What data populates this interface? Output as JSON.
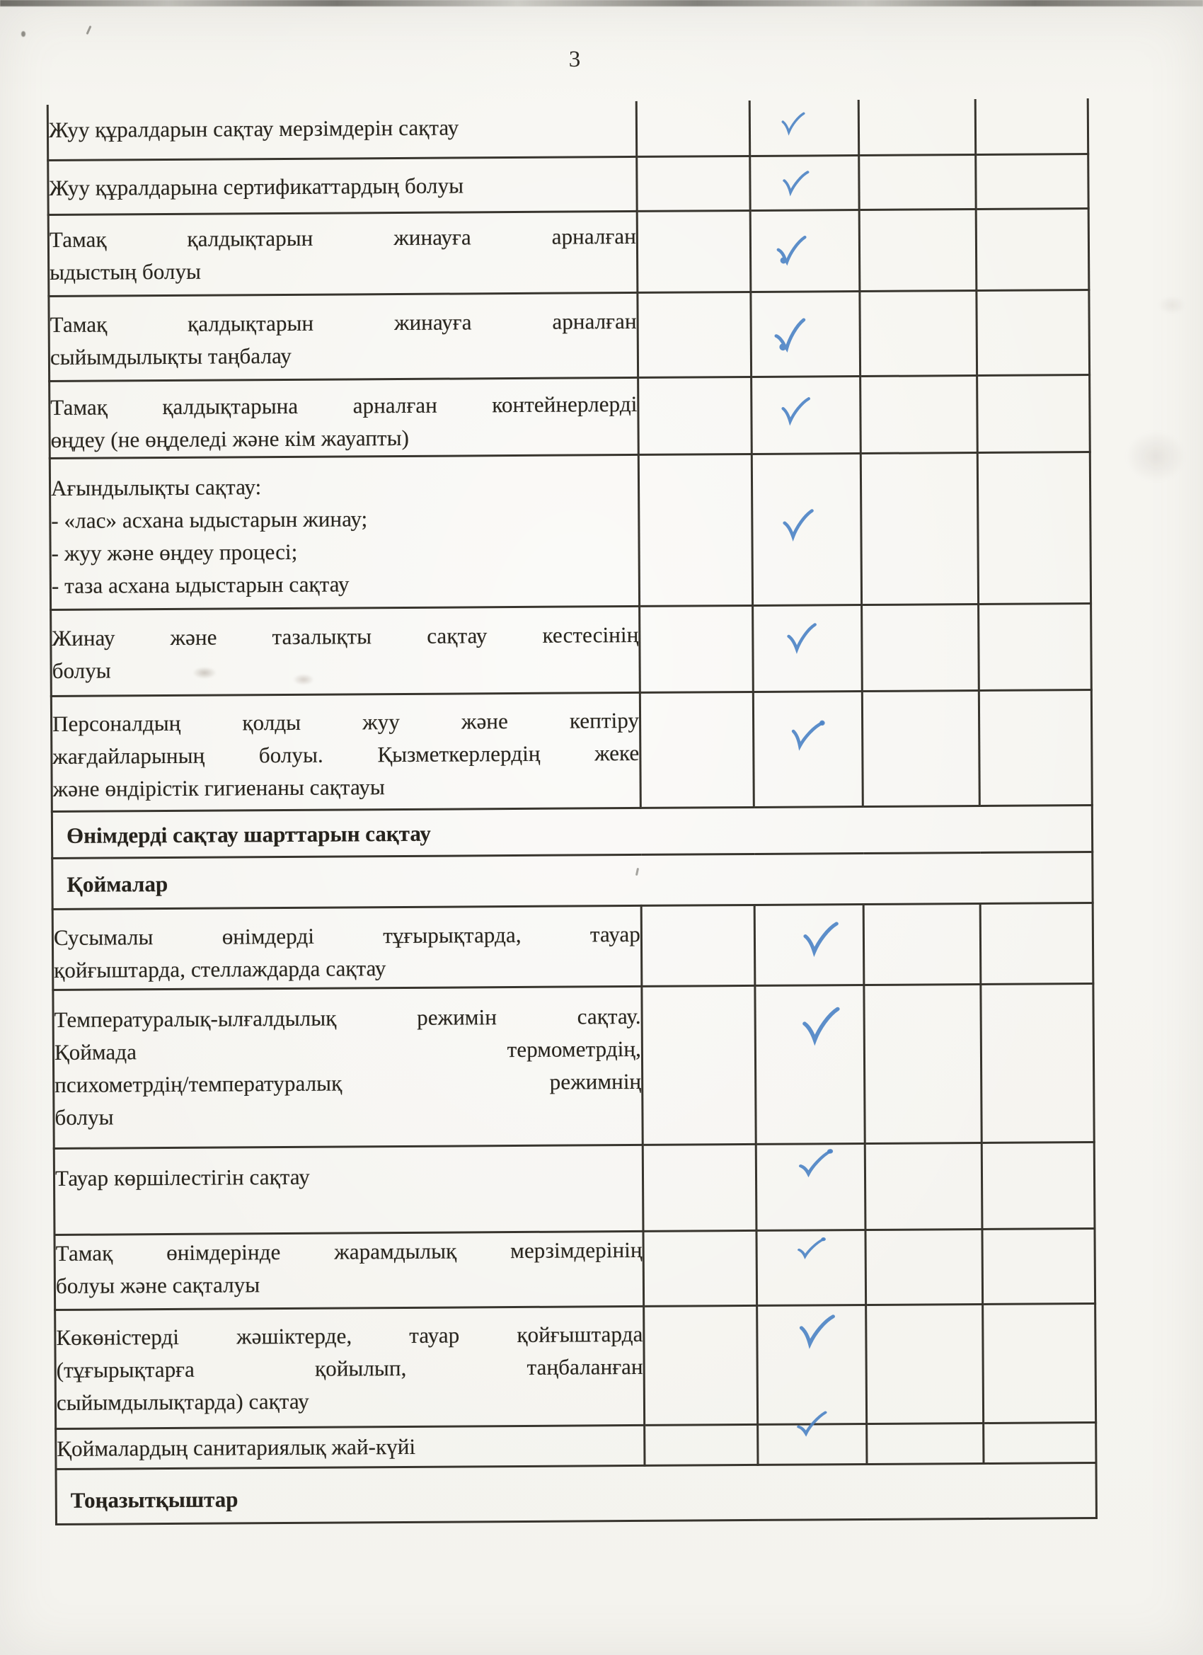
{
  "page": {
    "number": "3"
  },
  "colors": {
    "paper": "#f6f5f1",
    "text_ink": "#29261f",
    "table_border": "#38352e",
    "check_ink": "#4e84c6"
  },
  "icons": {
    "check": "checkmark"
  },
  "table": {
    "empty_result_columns": 4,
    "checked_result_column_index": 2,
    "rows": [
      {
        "kind": "item",
        "lines": [
          "Жуу құралдарын сақтау мерзімдерін сақтау"
        ],
        "checked": true
      },
      {
        "kind": "item",
        "lines": [
          "Жуу құралдарына сертификаттардың болуы"
        ],
        "checked": true
      },
      {
        "kind": "item",
        "lines": [
          "Тамақ қалдықтарын жинауға арналған",
          "ыдыстың болуы"
        ],
        "checked": true
      },
      {
        "kind": "item",
        "lines": [
          "Тамақ қалдықтарын жинауға арналған",
          "сыйымдылықты таңбалау"
        ],
        "checked": true
      },
      {
        "kind": "item",
        "lines": [
          "Тамақ қалдықтарына арналған контейнерлерді",
          "өңдеу (не өңделеді және кім жауапты)"
        ],
        "checked": true
      },
      {
        "kind": "item",
        "lines": [
          "Ағындылықты сақтау:",
          "- «лас» асхана ыдыстарын жинау;",
          "- жуу және өңдеу процесі;",
          "- таза асхана ыдыстарын сақтау"
        ],
        "checked": true
      },
      {
        "kind": "item",
        "lines": [
          "Жинау және тазалықты сақтау кестесінің",
          "болуы"
        ],
        "checked": true
      },
      {
        "kind": "item",
        "lines": [
          "Персоналдың қолды жуу және кептіру",
          "жағдайларының болуы. Қызметкерлердің жеке",
          "және өндірістік гигиенаны сақтауы"
        ],
        "checked": true
      },
      {
        "kind": "section",
        "lines": [
          "Өнімдерді сақтау шарттарын сақтау"
        ]
      },
      {
        "kind": "section",
        "lines": [
          "Қоймалар"
        ]
      },
      {
        "kind": "item",
        "lines": [
          "Сусымалы өнімдерді тұғырықтарда, тауар",
          "қойғыштарда, стеллаждарда сақтау"
        ],
        "checked": true
      },
      {
        "kind": "item",
        "lines": [
          "Температуралық-ылғалдылық режимін сақтау.",
          "Қоймада термометрдің,",
          "психометрдің/температуралық режимнің",
          "болуы"
        ],
        "checked": true
      },
      {
        "kind": "item",
        "lines": [
          "Тауар көршілестігін сақтау"
        ],
        "checked": true
      },
      {
        "kind": "item",
        "lines": [
          "Тамақ өнімдерінде жарамдылық мерзімдерінің",
          "болуы және сақталуы"
        ],
        "checked": true
      },
      {
        "kind": "item",
        "lines": [
          "Көкөністерді жәшіктерде, тауар қойғыштарда",
          "(тұғырықтарға қойылып, таңбаланған",
          "сыйымдылықтарда) сақтау"
        ],
        "checked": true
      },
      {
        "kind": "item",
        "lines": [
          "Қоймалардың санитариялық жай-күйі"
        ],
        "checked": true
      },
      {
        "kind": "section",
        "lines": [
          "Тоңазытқыштар"
        ]
      }
    ]
  }
}
